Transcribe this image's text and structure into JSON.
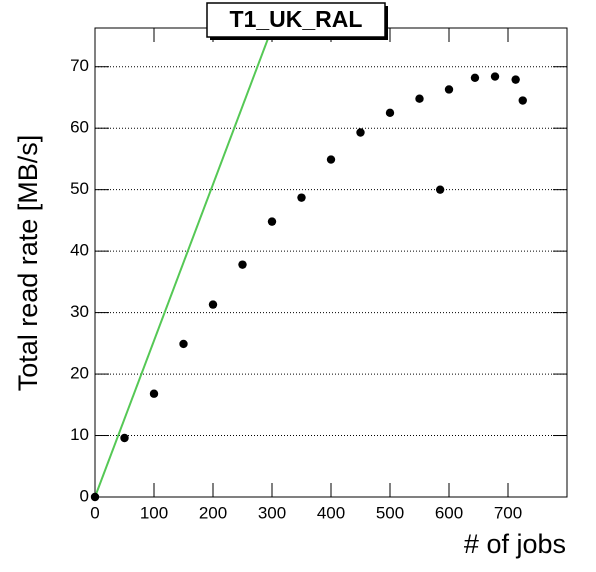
{
  "chart_data": {
    "type": "scatter",
    "title": "T1_UK_RAL",
    "x_label": "# of jobs",
    "y_label": "Total read rate [MB/s]",
    "x": [
      0,
      50,
      100,
      150,
      200,
      250,
      300,
      350,
      400,
      450,
      500,
      550,
      585,
      600,
      644,
      678,
      713,
      725
    ],
    "y": [
      0,
      9.6,
      16.8,
      24.9,
      31.3,
      37.8,
      44.8,
      48.7,
      54.9,
      59.3,
      62.5,
      64.8,
      50.0,
      66.3,
      68.2,
      68.4,
      67.9,
      64.5
    ],
    "color": "#000000",
    "line": {
      "x": [
        0,
        300
      ],
      "y": [
        0,
        76.3
      ],
      "color": "#55c855"
    },
    "xlim": [
      0,
      800
    ],
    "ylim": [
      0,
      76.3
    ],
    "xticks": [
      0,
      100,
      200,
      300,
      400,
      500,
      600,
      700
    ],
    "yticks": [
      0,
      10,
      20,
      30,
      40,
      50,
      60,
      70
    ],
    "grid": true
  }
}
